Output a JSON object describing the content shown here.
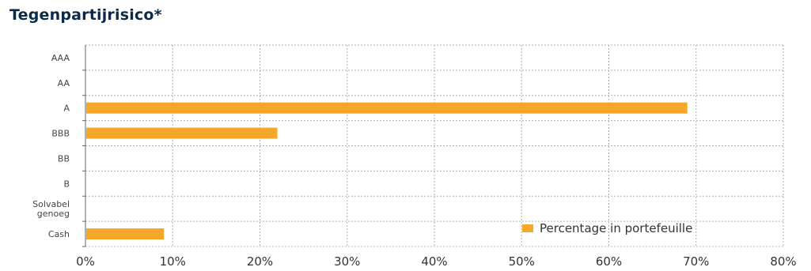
{
  "chart_data": {
    "type": "bar",
    "orientation": "horizontal",
    "title": "Tegenpartijrisico*",
    "categories": [
      "AAA",
      "AA",
      "A",
      "BBB",
      "BB",
      "B",
      "Solvabel genoeg",
      "Cash"
    ],
    "category_lines": [
      [
        "AAA"
      ],
      [
        "AA"
      ],
      [
        "A"
      ],
      [
        "BBB"
      ],
      [
        "BB"
      ],
      [
        "B"
      ],
      [
        "Solvabel",
        "genoeg"
      ],
      [
        "Cash"
      ]
    ],
    "series": [
      {
        "name": "Percentage in portefeuille",
        "values": [
          0,
          0,
          69,
          22,
          0,
          0,
          0,
          9
        ]
      }
    ],
    "x_ticks": [
      "0%",
      "10%",
      "20%",
      "30%",
      "40%",
      "50%",
      "60%",
      "70%",
      "80%"
    ],
    "xlim": [
      0,
      80
    ],
    "unit": "%",
    "grid": true,
    "legend_position": "bottom-right",
    "bar_color": "#f5a72a"
  }
}
